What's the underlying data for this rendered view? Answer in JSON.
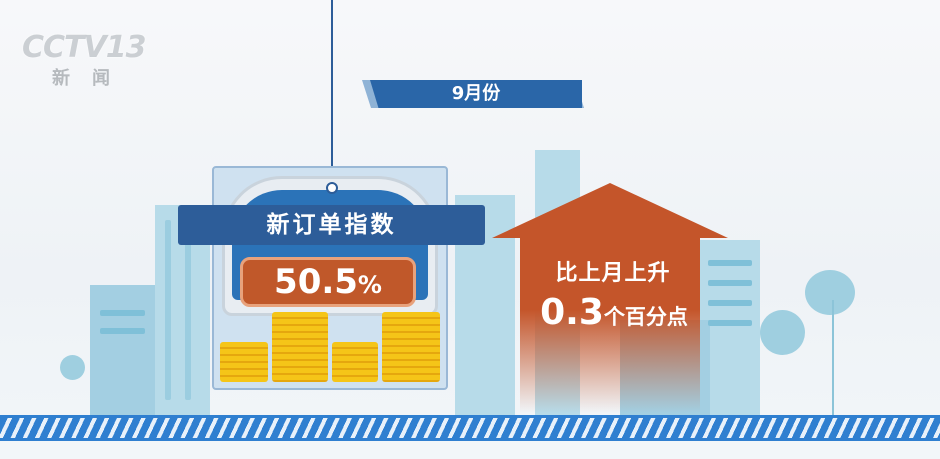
{
  "logo": {
    "channel": "CCTV13",
    "sub": "新闻"
  },
  "month_banner": "9月份",
  "indicator": {
    "label": "新订单指数",
    "value": "50.5",
    "unit": "%"
  },
  "change": {
    "line1": "比上月上升",
    "number": "0.3",
    "unit": "个百分点",
    "direction": "up"
  },
  "colors": {
    "primary_blue": "#2d5d99",
    "accent_orange": "#c0582a",
    "building_blue": "#b7dbe9",
    "coin_gold": "#f5c518"
  }
}
